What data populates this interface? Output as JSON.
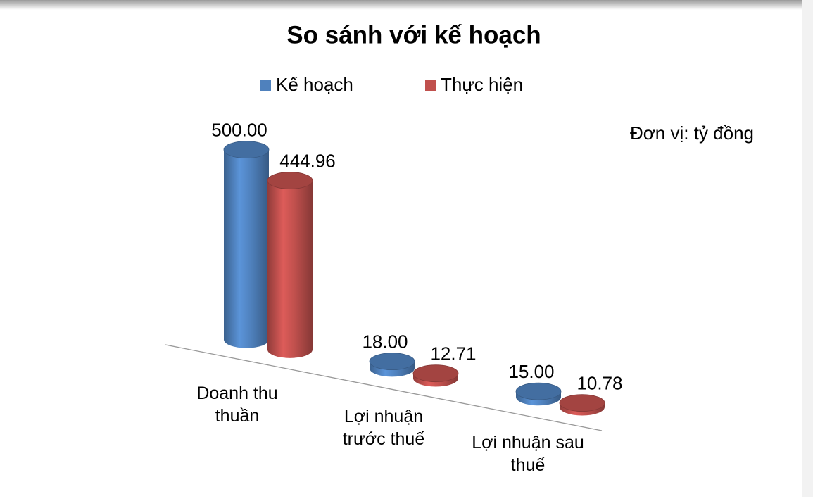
{
  "chart_data": {
    "type": "cylinder-bar",
    "title": "So sánh với kế hoạch",
    "annotation": "Đơn vị: tỷ đồng",
    "categories": [
      "Doanh thu thuần",
      "Lợi nhuận trước thuế",
      "Lợi nhuận sau thuế"
    ],
    "series": [
      {
        "name": "Kế hoạch",
        "color": "#4f81bd",
        "values": [
          500,
          18,
          15
        ],
        "value_labels": [
          "500.00",
          "18.00",
          "15.00"
        ]
      },
      {
        "name": "Thực hiện",
        "color": "#c0504d",
        "values": [
          444.96,
          12.71,
          10.78
        ],
        "value_labels": [
          "444.96",
          "12.71",
          "10.78"
        ]
      }
    ],
    "ylim": [
      0,
      500
    ]
  }
}
